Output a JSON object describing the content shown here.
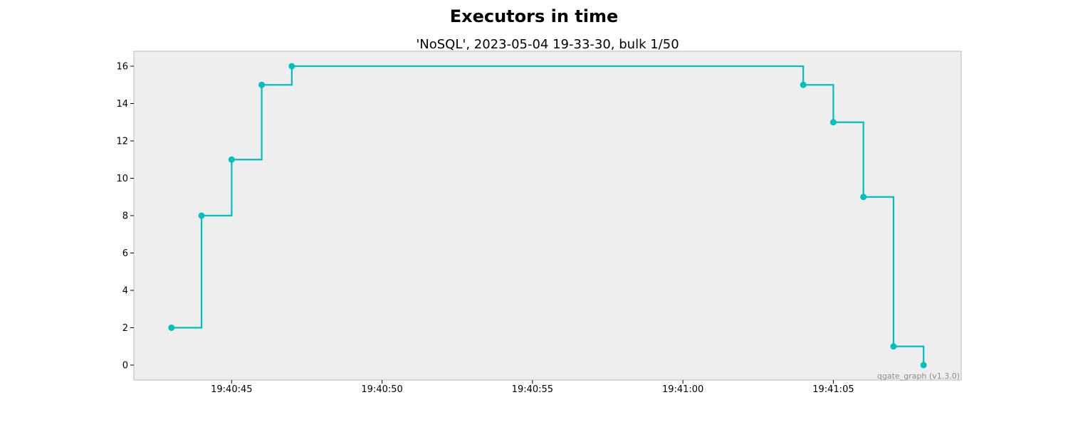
{
  "chart_data": {
    "type": "line",
    "title": "Executors in time",
    "subtitle": "'NoSQL', 2023-05-04 19-33-30, bulk 1/50",
    "xlabel": "",
    "ylabel": "",
    "step": "post",
    "grid": false,
    "background_color": "#eeeeee",
    "line_color": "#00bfbf",
    "watermark": "qgate_graph (v1.3.0)",
    "xlim": [
      "19:40:41.750",
      "19:41:09.250"
    ],
    "ylim": [
      -0.8,
      16.8
    ],
    "x_ticks": [
      "19:40:45",
      "19:40:50",
      "19:40:55",
      "19:41:00",
      "19:41:05"
    ],
    "y_ticks": [
      0,
      2,
      4,
      6,
      8,
      10,
      12,
      14,
      16
    ],
    "series": [
      {
        "x": [
          "19:40:43",
          "19:40:44",
          "19:40:45",
          "19:40:46",
          "19:40:47",
          "19:41:04",
          "19:41:05",
          "19:41:06",
          "19:41:07",
          "19:41:08"
        ],
        "values": [
          2,
          8,
          11,
          15,
          16,
          15,
          13,
          9,
          1,
          0
        ]
      }
    ]
  }
}
